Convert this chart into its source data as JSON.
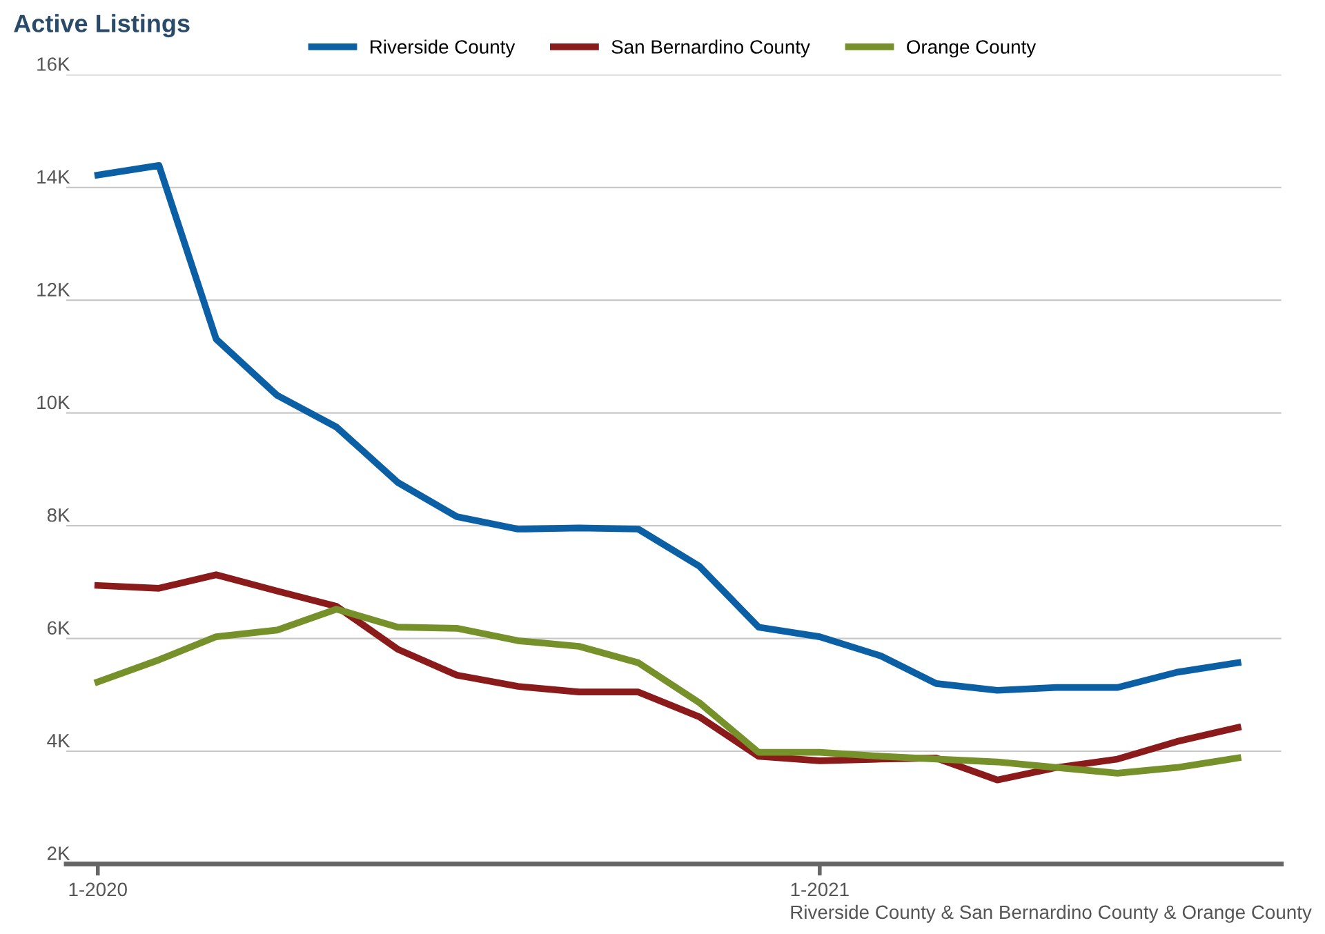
{
  "chart_data": {
    "type": "line",
    "title": "Active Listings",
    "x": [
      "2020-01",
      "2020-02",
      "2020-03",
      "2020-04",
      "2020-05",
      "2020-06",
      "2020-07",
      "2020-08",
      "2020-09",
      "2020-10",
      "2020-11",
      "2020-12",
      "2021-01",
      "2021-02",
      "2021-03",
      "2021-04",
      "2021-05",
      "2021-06",
      "2021-07",
      "2021-08"
    ],
    "series": [
      {
        "name": "Riverside County",
        "color": "#0b5fa5",
        "values": [
          14.22,
          14.39,
          11.31,
          10.31,
          9.75,
          8.77,
          8.16,
          7.94,
          7.96,
          7.94,
          7.28,
          6.2,
          6.03,
          5.69,
          5.2,
          5.08,
          5.13,
          5.13,
          5.4,
          5.57
        ]
      },
      {
        "name": "San Bernardino County",
        "color": "#8b1a1a",
        "values": [
          6.94,
          6.89,
          7.13,
          6.84,
          6.57,
          5.81,
          5.35,
          5.15,
          5.05,
          5.05,
          4.61,
          3.91,
          3.83,
          3.86,
          3.88,
          3.49,
          3.71,
          3.86,
          4.17,
          4.42
        ]
      },
      {
        "name": "Orange County",
        "color": "#76902a",
        "values": [
          5.23,
          5.62,
          6.03,
          6.15,
          6.52,
          6.2,
          6.18,
          5.96,
          5.86,
          5.57,
          4.86,
          3.98,
          3.98,
          3.91,
          3.86,
          3.81,
          3.71,
          3.61,
          3.71,
          3.88
        ]
      }
    ],
    "xlim": [
      "2019-12-16",
      "2021-08-23"
    ],
    "xticks": [
      {
        "value": "2020-01",
        "label": "1-2020"
      },
      {
        "value": "2021-01",
        "label": "1-2021"
      }
    ],
    "ylim": [
      2,
      16
    ],
    "yticks": [
      {
        "value": 2,
        "label": "2K"
      },
      {
        "value": 4,
        "label": "4K"
      },
      {
        "value": 6,
        "label": "6K"
      },
      {
        "value": 8,
        "label": "8K"
      },
      {
        "value": 10,
        "label": "10K"
      },
      {
        "value": 12,
        "label": "12K"
      },
      {
        "value": 14,
        "label": "14K"
      },
      {
        "value": 16,
        "label": "16K"
      }
    ],
    "grid": "y",
    "legend": "top",
    "marker": "none",
    "line_style": "solid",
    "annotations": [
      "Riverside County & San Bernardino County & Orange County"
    ]
  }
}
